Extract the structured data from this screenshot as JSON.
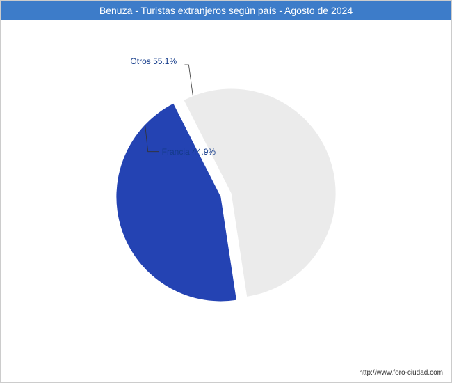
{
  "title": "Benuza - Turistas extranjeros según país - Agosto de 2024",
  "title_bar_color": "#3d7cc9",
  "title_text_color": "#ffffff",
  "footer": "http://www.foro-ciudad.com",
  "chart": {
    "type": "pie",
    "radius": 150,
    "explode_gap": 8,
    "background_color": "#ffffff",
    "label_color": "#143b8a",
    "label_fontsize": 12,
    "leader_color": "#333333",
    "slices": [
      {
        "label": "Otros 55.1%",
        "value": 55.1,
        "color": "#ebebeb"
      },
      {
        "label": "Francia 44.9%",
        "value": 44.9,
        "color": "#2443b3"
      }
    ]
  }
}
